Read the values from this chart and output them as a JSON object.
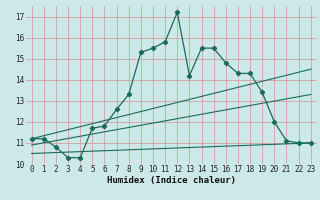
{
  "xlabel": "Humidex (Indice chaleur)",
  "background_color": "#cce8e8",
  "grid_color": "#d4a0a0",
  "line_color": "#1a6b5a",
  "xlim": [
    -0.5,
    23.5
  ],
  "ylim": [
    10,
    17.5
  ],
  "yticks": [
    10,
    11,
    12,
    13,
    14,
    15,
    16,
    17
  ],
  "xticks": [
    0,
    1,
    2,
    3,
    4,
    5,
    6,
    7,
    8,
    9,
    10,
    11,
    12,
    13,
    14,
    15,
    16,
    17,
    18,
    19,
    20,
    21,
    22,
    23
  ],
  "series1_x": [
    0,
    1,
    2,
    3,
    4,
    5,
    6,
    7,
    8,
    9,
    10,
    11,
    12,
    13,
    14,
    15,
    16,
    17,
    18,
    19,
    20,
    21,
    22,
    23
  ],
  "series1_y": [
    11.2,
    11.2,
    10.8,
    10.3,
    10.3,
    11.7,
    11.8,
    12.6,
    13.3,
    15.3,
    15.5,
    15.8,
    17.2,
    14.2,
    15.5,
    15.5,
    14.8,
    14.3,
    14.3,
    13.4,
    12.0,
    11.1,
    11.0,
    11.0
  ],
  "series2_x": [
    0,
    23
  ],
  "series2_y": [
    11.2,
    14.5
  ],
  "series3_x": [
    0,
    23
  ],
  "series3_y": [
    10.9,
    13.3
  ],
  "series4_x": [
    0,
    23
  ],
  "series4_y": [
    10.5,
    11.0
  ]
}
